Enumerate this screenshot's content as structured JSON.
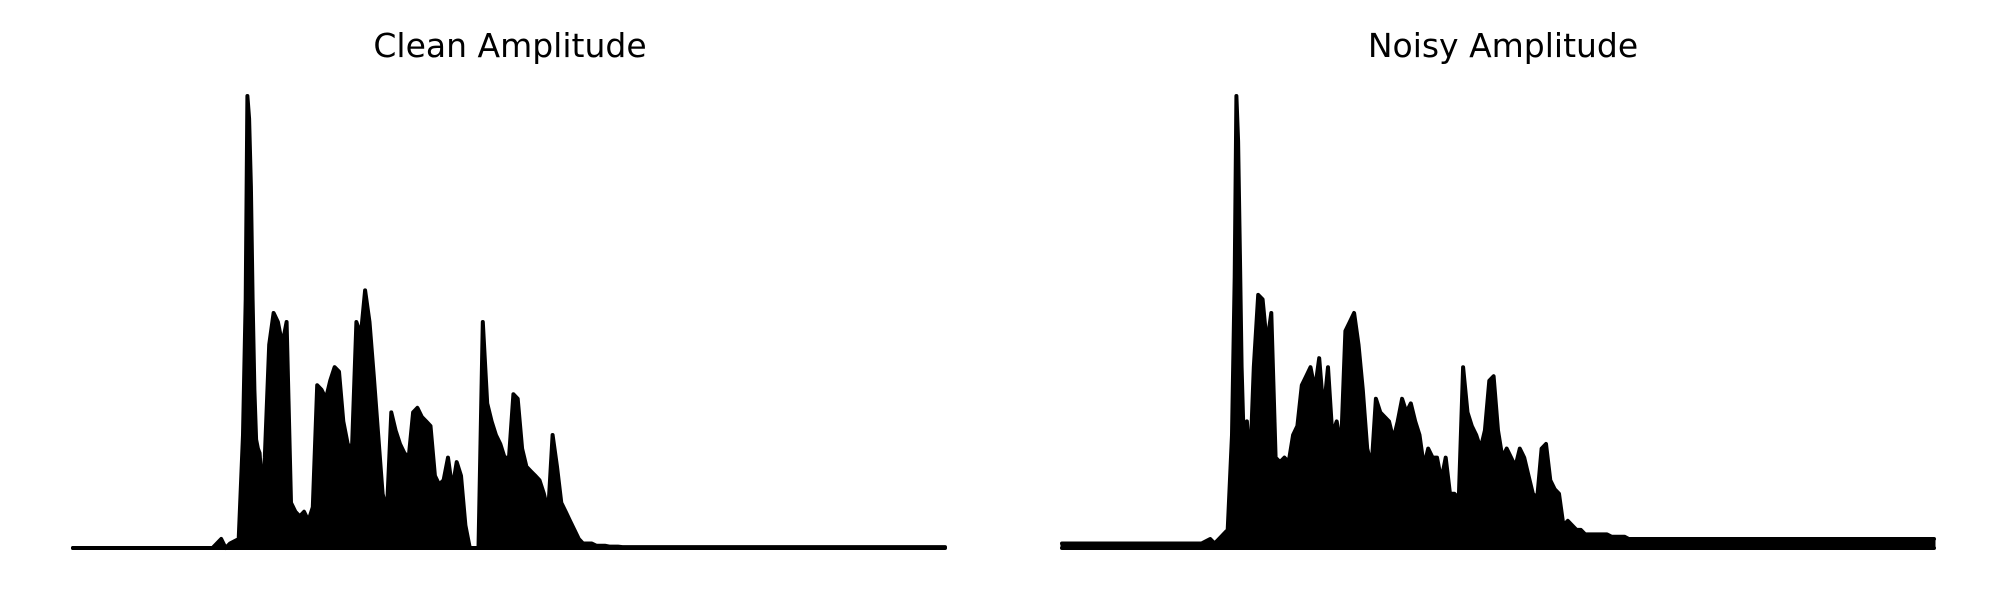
{
  "figure": {
    "line_color": "#000000",
    "background_color": "#ffffff"
  },
  "chart_data": [
    {
      "type": "area",
      "title": "Clean Amplitude",
      "xlabel": "",
      "ylabel": "",
      "axes_visible": false,
      "grid": false,
      "legend": "none",
      "color": "#000000",
      "xlim": [
        0,
        1
      ],
      "ylim": [
        0,
        1
      ],
      "x": [
        0.0,
        0.16,
        0.17,
        0.175,
        0.18,
        0.19,
        0.195,
        0.198,
        0.2,
        0.202,
        0.204,
        0.206,
        0.208,
        0.21,
        0.212,
        0.214,
        0.216,
        0.218,
        0.22,
        0.225,
        0.23,
        0.235,
        0.24,
        0.245,
        0.25,
        0.255,
        0.26,
        0.265,
        0.27,
        0.275,
        0.28,
        0.285,
        0.29,
        0.295,
        0.3,
        0.305,
        0.31,
        0.315,
        0.32,
        0.325,
        0.33,
        0.335,
        0.34,
        0.345,
        0.35,
        0.355,
        0.36,
        0.365,
        0.37,
        0.375,
        0.38,
        0.385,
        0.39,
        0.395,
        0.4,
        0.405,
        0.41,
        0.415,
        0.42,
        0.425,
        0.43,
        0.435,
        0.44,
        0.445,
        0.45,
        0.455,
        0.46,
        0.465,
        0.47,
        0.475,
        0.48,
        0.485,
        0.49,
        0.495,
        0.5,
        0.505,
        0.51,
        0.515,
        0.52,
        0.525,
        0.53,
        0.535,
        0.54,
        0.545,
        0.55,
        0.555,
        0.56,
        0.565,
        0.57,
        0.575,
        0.58,
        0.585,
        0.59,
        0.595,
        0.6,
        0.605,
        0.61,
        0.615,
        0.62,
        0.625,
        0.63,
        0.635,
        0.64,
        0.645,
        0.65,
        0.655,
        0.66,
        0.665,
        0.67,
        0.675,
        0.68,
        0.685,
        0.69,
        0.695,
        0.7,
        0.705,
        0.71,
        0.715,
        0.72,
        0.725,
        0.73,
        0.735,
        0.74,
        0.745,
        0.75,
        0.76,
        0.77,
        0.78,
        0.8,
        0.85,
        0.9,
        0.95,
        1.0
      ],
      "values": [
        0.0,
        0.0,
        0.02,
        0.0,
        0.01,
        0.02,
        0.25,
        0.55,
        1.0,
        0.95,
        0.8,
        0.55,
        0.35,
        0.24,
        0.22,
        0.21,
        0.15,
        0.14,
        0.2,
        0.45,
        0.52,
        0.5,
        0.45,
        0.5,
        0.1,
        0.08,
        0.07,
        0.08,
        0.06,
        0.09,
        0.36,
        0.35,
        0.33,
        0.37,
        0.4,
        0.39,
        0.28,
        0.23,
        0.22,
        0.5,
        0.47,
        0.57,
        0.5,
        0.38,
        0.25,
        0.12,
        0.08,
        0.3,
        0.26,
        0.23,
        0.21,
        0.2,
        0.3,
        0.31,
        0.29,
        0.28,
        0.27,
        0.16,
        0.14,
        0.15,
        0.2,
        0.13,
        0.19,
        0.16,
        0.05,
        0.0,
        0.0,
        0.0,
        0.5,
        0.32,
        0.28,
        0.25,
        0.23,
        0.2,
        0.2,
        0.34,
        0.33,
        0.22,
        0.18,
        0.17,
        0.16,
        0.15,
        0.12,
        0.08,
        0.25,
        0.18,
        0.1,
        0.08,
        0.06,
        0.04,
        0.02,
        0.01,
        0.01,
        0.01,
        0.005,
        0.005,
        0.005,
        0.003,
        0.003,
        0.003,
        0.002,
        0.002,
        0.002,
        0.002,
        0.002,
        0.002,
        0.002,
        0.002,
        0.002,
        0.002,
        0.002,
        0.002,
        0.002,
        0.002,
        0.002,
        0.002,
        0.002,
        0.002,
        0.002,
        0.002,
        0.002,
        0.002,
        0.002,
        0.002,
        0.002,
        0.002,
        0.002,
        0.002,
        0.002,
        0.002,
        0.002,
        0.002,
        0.002
      ]
    },
    {
      "type": "area",
      "title": "Noisy Amplitude",
      "xlabel": "",
      "ylabel": "",
      "axes_visible": false,
      "grid": false,
      "legend": "none",
      "color": "#000000",
      "xlim": [
        0,
        1
      ],
      "ylim": [
        0,
        1
      ],
      "x": [
        0.0,
        0.16,
        0.17,
        0.175,
        0.18,
        0.19,
        0.195,
        0.198,
        0.2,
        0.202,
        0.204,
        0.206,
        0.208,
        0.21,
        0.212,
        0.214,
        0.216,
        0.218,
        0.22,
        0.225,
        0.23,
        0.235,
        0.24,
        0.245,
        0.25,
        0.255,
        0.26,
        0.265,
        0.27,
        0.275,
        0.28,
        0.285,
        0.29,
        0.295,
        0.3,
        0.305,
        0.31,
        0.315,
        0.32,
        0.325,
        0.33,
        0.335,
        0.34,
        0.345,
        0.35,
        0.355,
        0.36,
        0.365,
        0.37,
        0.375,
        0.38,
        0.385,
        0.39,
        0.395,
        0.4,
        0.405,
        0.41,
        0.415,
        0.42,
        0.425,
        0.43,
        0.435,
        0.44,
        0.445,
        0.45,
        0.455,
        0.46,
        0.465,
        0.47,
        0.475,
        0.48,
        0.485,
        0.49,
        0.495,
        0.5,
        0.505,
        0.51,
        0.515,
        0.52,
        0.525,
        0.53,
        0.535,
        0.54,
        0.545,
        0.55,
        0.555,
        0.56,
        0.565,
        0.57,
        0.575,
        0.58,
        0.585,
        0.59,
        0.595,
        0.6,
        0.605,
        0.61,
        0.615,
        0.62,
        0.625,
        0.63,
        0.635,
        0.64,
        0.645,
        0.65,
        0.655,
        0.66,
        0.665,
        0.67,
        0.675,
        0.68,
        0.685,
        0.69,
        0.695,
        0.7,
        0.705,
        0.71,
        0.715,
        0.72,
        0.725,
        0.73,
        0.735,
        0.74,
        0.745,
        0.75,
        0.76,
        0.77,
        0.78,
        0.8,
        0.85,
        0.9,
        0.95,
        1.0
      ],
      "values": [
        0.01,
        0.01,
        0.02,
        0.01,
        0.02,
        0.04,
        0.25,
        0.6,
        1.0,
        0.9,
        0.65,
        0.4,
        0.26,
        0.25,
        0.28,
        0.22,
        0.2,
        0.3,
        0.4,
        0.56,
        0.55,
        0.45,
        0.52,
        0.2,
        0.19,
        0.2,
        0.19,
        0.25,
        0.27,
        0.36,
        0.38,
        0.4,
        0.35,
        0.42,
        0.3,
        0.4,
        0.25,
        0.28,
        0.22,
        0.48,
        0.5,
        0.52,
        0.45,
        0.35,
        0.22,
        0.18,
        0.33,
        0.3,
        0.29,
        0.28,
        0.24,
        0.28,
        0.33,
        0.3,
        0.32,
        0.28,
        0.25,
        0.18,
        0.22,
        0.2,
        0.2,
        0.15,
        0.2,
        0.12,
        0.12,
        0.11,
        0.4,
        0.3,
        0.27,
        0.25,
        0.22,
        0.26,
        0.37,
        0.38,
        0.26,
        0.2,
        0.22,
        0.2,
        0.18,
        0.22,
        0.2,
        0.16,
        0.12,
        0.11,
        0.22,
        0.23,
        0.15,
        0.13,
        0.12,
        0.05,
        0.06,
        0.05,
        0.04,
        0.04,
        0.03,
        0.03,
        0.03,
        0.03,
        0.03,
        0.03,
        0.025,
        0.025,
        0.025,
        0.025,
        0.02,
        0.02,
        0.02,
        0.02,
        0.02,
        0.02,
        0.02,
        0.02,
        0.02,
        0.02,
        0.02,
        0.02,
        0.02,
        0.02,
        0.02,
        0.02,
        0.02,
        0.02,
        0.02,
        0.02,
        0.02,
        0.02,
        0.02,
        0.02,
        0.02,
        0.02,
        0.02,
        0.02,
        0.02
      ]
    }
  ]
}
